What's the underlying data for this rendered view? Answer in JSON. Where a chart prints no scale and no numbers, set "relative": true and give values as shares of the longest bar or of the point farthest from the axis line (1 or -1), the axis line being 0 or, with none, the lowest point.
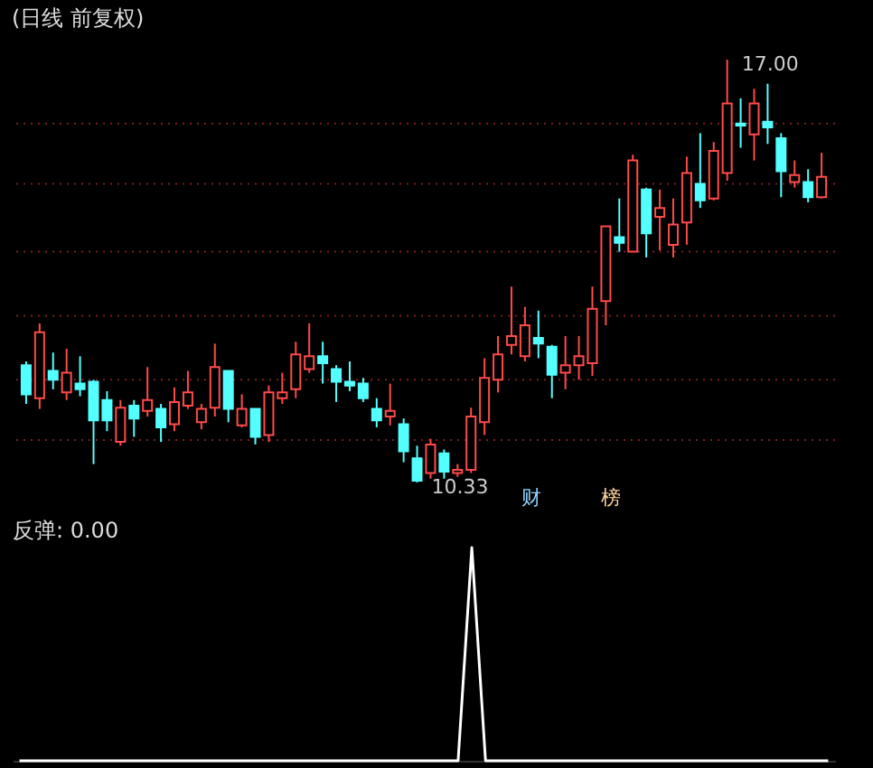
{
  "chart_data": [
    {
      "type": "candlestick",
      "title": "(日线 前复权)",
      "categories": [
        null,
        null,
        null,
        null,
        null,
        null,
        null,
        null,
        null,
        null,
        null,
        null,
        null,
        null,
        null,
        null,
        null,
        null,
        null,
        null,
        null,
        null,
        null,
        null,
        null,
        null,
        null,
        null,
        null,
        null,
        null,
        null,
        null,
        null,
        null,
        null,
        null,
        null,
        null,
        null,
        null,
        null,
        null,
        null,
        null,
        null,
        null,
        null,
        null,
        null,
        null,
        null,
        null,
        null,
        null,
        null,
        null,
        null,
        null,
        null
      ],
      "ohlc": [
        [
          12.18,
          12.24,
          11.57,
          11.72
        ],
        [
          11.66,
          12.84,
          11.49,
          12.7
        ],
        [
          12.09,
          12.38,
          11.8,
          11.95
        ],
        [
          11.75,
          12.44,
          11.63,
          12.06
        ],
        [
          11.89,
          12.32,
          11.69,
          11.8
        ],
        [
          11.92,
          11.95,
          10.62,
          11.31
        ],
        [
          11.63,
          11.77,
          11.14,
          11.31
        ],
        [
          10.97,
          11.63,
          10.91,
          11.51
        ],
        [
          11.54,
          11.63,
          11.05,
          11.34
        ],
        [
          11.46,
          12.15,
          11.37,
          11.63
        ],
        [
          11.49,
          11.57,
          10.97,
          11.2
        ],
        [
          11.25,
          11.83,
          11.14,
          11.6
        ],
        [
          11.54,
          12.09,
          11.49,
          11.75
        ],
        [
          11.28,
          11.57,
          11.17,
          11.49
        ],
        [
          11.51,
          12.52,
          11.37,
          12.15
        ],
        [
          12.09,
          12.09,
          11.28,
          11.49
        ],
        [
          11.23,
          11.72,
          11.2,
          11.49
        ],
        [
          11.49,
          11.49,
          10.93,
          11.05
        ],
        [
          11.08,
          11.86,
          10.97,
          11.75
        ],
        [
          11.66,
          12.06,
          11.57,
          11.75
        ],
        [
          11.8,
          12.55,
          11.66,
          12.35
        ],
        [
          12.12,
          12.84,
          12.06,
          12.32
        ],
        [
          12.32,
          12.55,
          11.89,
          12.21
        ],
        [
          12.12,
          12.18,
          11.6,
          11.92
        ],
        [
          11.92,
          12.24,
          11.77,
          11.86
        ],
        [
          11.89,
          11.98,
          11.6,
          11.66
        ],
        [
          11.49,
          11.66,
          11.2,
          11.31
        ],
        [
          11.37,
          11.89,
          11.23,
          11.46
        ],
        [
          11.25,
          11.34,
          10.65,
          10.82
        ],
        [
          10.71,
          10.91,
          10.33,
          10.36
        ],
        [
          10.48,
          11.02,
          10.39,
          10.93
        ],
        [
          10.79,
          10.85,
          10.39,
          10.5
        ],
        [
          10.48,
          10.62,
          10.42,
          10.53
        ],
        [
          10.53,
          11.51,
          10.48,
          11.37
        ],
        [
          11.28,
          12.29,
          11.08,
          11.98
        ],
        [
          11.95,
          12.64,
          11.75,
          12.35
        ],
        [
          12.5,
          13.42,
          12.35,
          12.64
        ],
        [
          12.32,
          13.1,
          12.24,
          12.81
        ],
        [
          12.61,
          13.04,
          12.29,
          12.52
        ],
        [
          12.47,
          12.5,
          11.66,
          12.03
        ],
        [
          12.06,
          12.64,
          11.8,
          12.18
        ],
        [
          12.18,
          12.64,
          11.95,
          12.32
        ],
        [
          12.21,
          13.42,
          12.01,
          13.07
        ],
        [
          13.19,
          14.37,
          12.81,
          14.37
        ],
        [
          14.2,
          14.81,
          13.97,
          14.11
        ],
        [
          13.97,
          15.5,
          13.97,
          15.41
        ],
        [
          14.95,
          14.98,
          13.88,
          14.26
        ],
        [
          14.52,
          14.95,
          13.99,
          14.66
        ],
        [
          14.08,
          14.81,
          13.88,
          14.4
        ],
        [
          14.43,
          15.47,
          14.08,
          15.21
        ],
        [
          15.04,
          15.84,
          14.66,
          14.78
        ],
        [
          14.81,
          15.7,
          14.78,
          15.56
        ],
        [
          15.21,
          17.0,
          15.09,
          16.31
        ],
        [
          15.99,
          16.39,
          15.61,
          15.96
        ],
        [
          15.82,
          16.54,
          15.41,
          16.31
        ],
        [
          16.02,
          16.62,
          15.67,
          15.93
        ],
        [
          15.76,
          15.84,
          14.83,
          15.24
        ],
        [
          15.07,
          15.41,
          14.98,
          15.18
        ],
        [
          15.07,
          15.27,
          14.75,
          14.83
        ],
        [
          14.83,
          15.53,
          14.81,
          15.15
        ]
      ],
      "colors": [
        "#54ffff",
        "#ff4a4a",
        "#54ffff",
        "#ff4a4a",
        "#54ffff",
        "#54ffff",
        "#54ffff",
        "#ff4a4a",
        "#54ffff",
        "#ff4a4a",
        "#54ffff",
        "#ff4a4a",
        "#ff4a4a",
        "#ff4a4a",
        "#ff4a4a",
        "#54ffff",
        "#ff4a4a",
        "#54ffff",
        "#ff4a4a",
        "#ff4a4a",
        "#ff4a4a",
        "#ff4a4a",
        "#54ffff",
        "#54ffff",
        "#54ffff",
        "#54ffff",
        "#54ffff",
        "#ff4a4a",
        "#54ffff",
        "#54ffff",
        "#ff4a4a",
        "#54ffff",
        "#ff4a4a",
        "#ff4a4a",
        "#ff4a4a",
        "#ff4a4a",
        "#ff4a4a",
        "#ff4a4a",
        "#54ffff",
        "#54ffff",
        "#ff4a4a",
        "#ff4a4a",
        "#ff4a4a",
        "#ff4a4a",
        "#54ffff",
        "#ff4a4a",
        "#54ffff",
        "#ff4a4a",
        "#ff4a4a",
        "#ff4a4a",
        "#54ffff",
        "#ff4a4a",
        "#ff4a4a",
        "#54ffff",
        "#ff4a4a",
        "#54ffff",
        "#54ffff",
        "#ff4a4a",
        "#54ffff",
        "#ff4a4a"
      ],
      "yticks": [
        {
          "value": 15.99,
          "label": null
        },
        {
          "value": 15.04,
          "label": null
        },
        {
          "value": 13.97,
          "label": null
        },
        {
          "value": 12.96,
          "label": null
        },
        {
          "value": 11.95,
          "label": null
        },
        {
          "value": 11.0,
          "label": null
        }
      ],
      "grid": "y",
      "tick_labels": false,
      "annotations": [
        "17.00",
        "10.33",
        "财",
        "榜"
      ]
    },
    {
      "type": "line",
      "title": "反弹: 0.00",
      "categories": [
        null,
        null,
        null,
        null,
        null,
        null,
        null,
        null,
        null,
        null,
        null,
        null,
        null,
        null,
        null,
        null,
        null,
        null,
        null,
        null,
        null,
        null,
        null,
        null,
        null,
        null,
        null,
        null,
        null,
        null,
        null,
        null,
        null,
        null,
        null,
        null,
        null,
        null,
        null,
        null,
        null,
        null,
        null,
        null,
        null,
        null,
        null,
        null,
        null,
        null,
        null,
        null,
        null,
        null,
        null,
        null,
        null,
        null,
        null,
        null
      ],
      "values": [
        0,
        0,
        0,
        0,
        0,
        0,
        0,
        0,
        0,
        0,
        0,
        0,
        0,
        0,
        0,
        0,
        0,
        0,
        0,
        0,
        0,
        0,
        0,
        0,
        0,
        0,
        0,
        0,
        0,
        0,
        0,
        0,
        0,
        1,
        0,
        0,
        0,
        0,
        0,
        0,
        0,
        0,
        0,
        0,
        0,
        0,
        0,
        0,
        0,
        0,
        0,
        0,
        0,
        0,
        0,
        0,
        0,
        0,
        0,
        0
      ],
      "color": "#ffffff",
      "relative": true,
      "tick_labels": false
    }
  ]
}
